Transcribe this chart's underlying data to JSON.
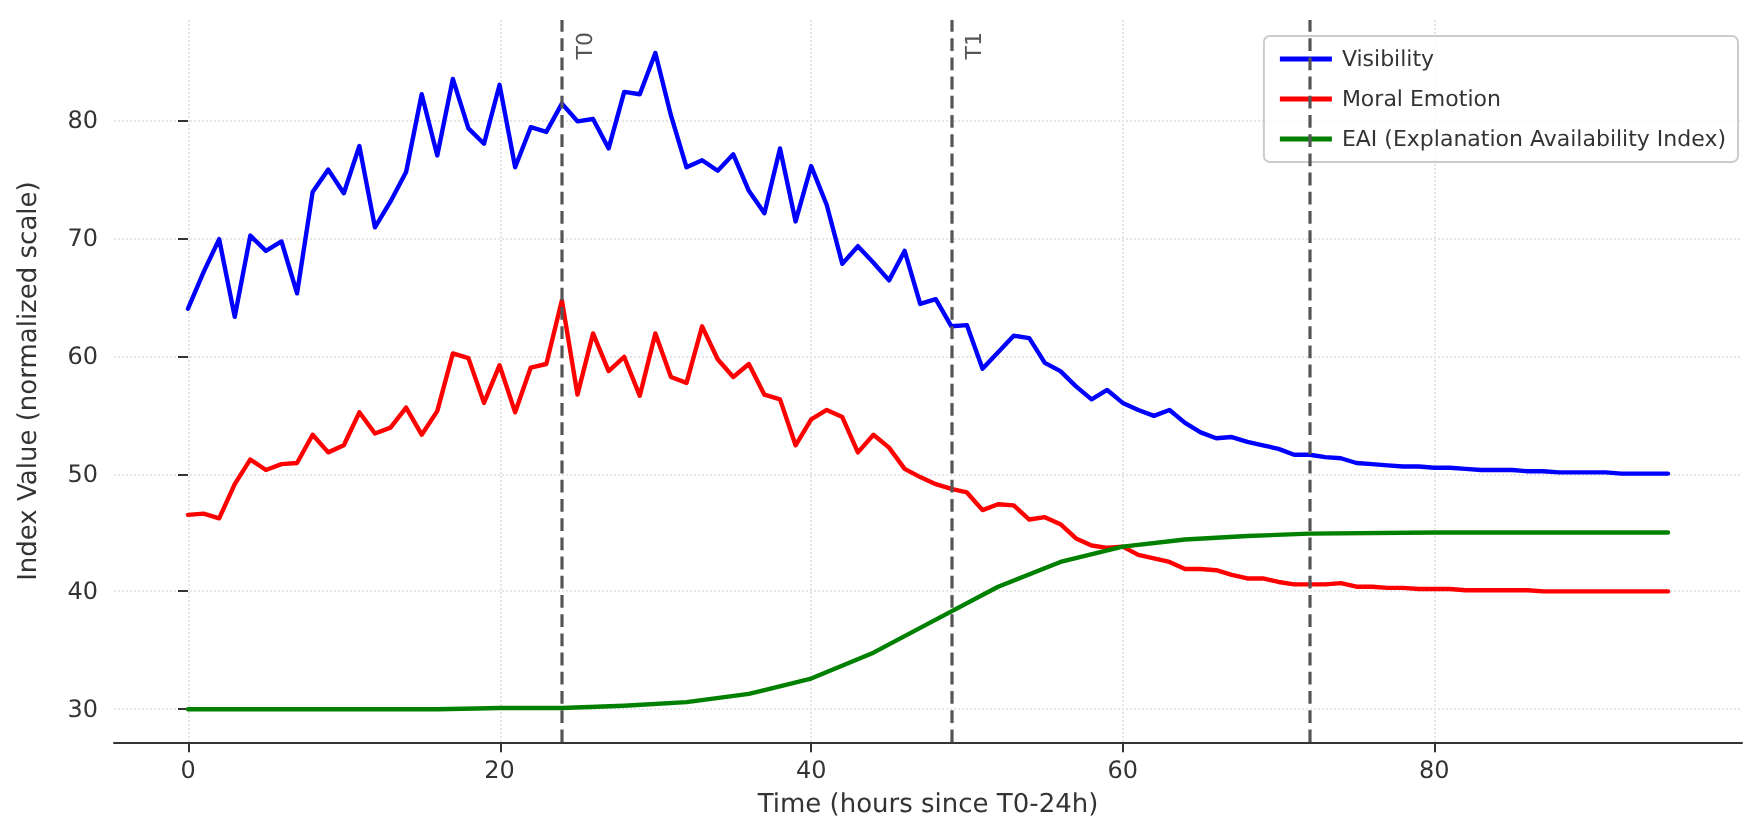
{
  "chart_data": {
    "type": "line",
    "xlabel": "Time (hours since T0-24h)",
    "ylabel": "Index Value (normalized scale)",
    "x": [
      0,
      1,
      2,
      3,
      4,
      5,
      6,
      7,
      8,
      9,
      10,
      11,
      12,
      13,
      14,
      15,
      16,
      17,
      18,
      19,
      20,
      21,
      22,
      23,
      24,
      25,
      26,
      27,
      28,
      29,
      30,
      31,
      32,
      33,
      34,
      35,
      36,
      37,
      38,
      39,
      40,
      41,
      42,
      43,
      44,
      45,
      46,
      47,
      48,
      49,
      50,
      51,
      52,
      53,
      54,
      55,
      56,
      57,
      58,
      59,
      60,
      61,
      62,
      63,
      64,
      65,
      66,
      67,
      68,
      69,
      70,
      71,
      72,
      73,
      74,
      75,
      76,
      77,
      78,
      79,
      80,
      81,
      82,
      83,
      84,
      85,
      86,
      87,
      88,
      89,
      90,
      91,
      92,
      93,
      94,
      95
    ],
    "series": [
      {
        "name": "Visibility",
        "color": "#0000ff",
        "values": [
          64.0,
          67.1,
          69.9,
          63.3,
          70.2,
          68.9,
          69.7,
          65.3,
          73.9,
          75.8,
          73.8,
          77.8,
          70.9,
          73.1,
          75.6,
          82.2,
          77.0,
          83.5,
          79.3,
          78.0,
          83.0,
          76.0,
          79.4,
          79.0,
          81.4,
          79.9,
          80.1,
          77.6,
          82.4,
          82.2,
          85.7,
          80.4,
          76.0,
          76.6,
          75.7,
          77.1,
          74.0,
          72.1,
          77.6,
          71.4,
          76.1,
          72.8,
          67.8,
          69.3,
          67.9,
          66.4,
          68.9,
          64.4,
          64.8,
          62.5,
          62.6,
          58.9,
          60.3,
          61.7,
          61.5,
          59.4,
          58.7,
          57.4,
          56.3,
          57.1,
          56.0,
          55.4,
          54.9,
          55.4,
          54.3,
          53.5,
          53.0,
          53.1,
          52.7,
          52.4,
          52.1,
          51.6,
          51.6,
          51.4,
          51.3,
          50.9,
          50.8,
          50.7,
          50.6,
          50.6,
          50.5,
          50.5,
          50.4,
          50.3,
          50.3,
          50.3,
          50.2,
          50.2,
          50.1,
          50.1,
          50.1,
          50.1,
          50.0,
          50.0,
          50.0,
          50.0
        ]
      },
      {
        "name": "Moral Emotion",
        "color": "#ff0000",
        "values": [
          46.5,
          46.6,
          46.2,
          49.1,
          51.2,
          50.3,
          50.8,
          50.9,
          53.3,
          51.8,
          52.4,
          55.2,
          53.4,
          53.9,
          55.6,
          53.3,
          55.3,
          60.2,
          59.8,
          56.0,
          59.2,
          55.2,
          59.0,
          59.3,
          64.7,
          56.7,
          61.9,
          58.7,
          59.9,
          56.6,
          61.9,
          58.2,
          57.7,
          62.5,
          59.7,
          58.2,
          59.3,
          56.7,
          56.3,
          52.4,
          54.6,
          55.4,
          54.8,
          51.8,
          53.3,
          52.2,
          50.4,
          49.7,
          49.1,
          48.7,
          48.4,
          46.9,
          47.4,
          47.3,
          46.1,
          46.3,
          45.7,
          44.5,
          43.9,
          43.7,
          43.8,
          43.1,
          42.8,
          42.5,
          41.9,
          41.9,
          41.8,
          41.4,
          41.1,
          41.1,
          40.8,
          40.6,
          40.6,
          40.6,
          40.7,
          40.4,
          40.4,
          40.3,
          40.3,
          40.2,
          40.2,
          40.2,
          40.1,
          40.1,
          40.1,
          40.1,
          40.1,
          40.0,
          40.0,
          40.0,
          40.0,
          40.0,
          40.0,
          40.0,
          40.0,
          40.0
        ]
      },
      {
        "name": "EAI (Explanation Availability Index)",
        "color": "#008000",
        "x": [
          0,
          8,
          16,
          20,
          24,
          28,
          32,
          36,
          40,
          44,
          48,
          52,
          56,
          60,
          64,
          68,
          72,
          80,
          88,
          95
        ],
        "values": [
          30.0,
          30.0,
          30.0,
          30.1,
          30.1,
          30.3,
          30.6,
          31.3,
          32.6,
          34.8,
          37.6,
          40.4,
          42.5,
          43.8,
          44.4,
          44.7,
          44.9,
          45.0,
          45.0,
          45.0
        ]
      }
    ],
    "ref_lines": [
      {
        "axis": "x",
        "value": 24,
        "label": "T0",
        "color": "#555555",
        "line_style": "dashed"
      },
      {
        "axis": "x",
        "value": 49,
        "label": "T1",
        "color": "#555555",
        "line_style": "dashed"
      },
      {
        "axis": "x",
        "value": 72,
        "color": "#555555",
        "line_style": "dashed"
      }
    ],
    "xlim": [
      -4.75,
      99.75
    ],
    "ylim": [
      27.2,
      88.5
    ],
    "xticks": [
      0,
      20,
      40,
      60,
      80
    ],
    "yticks": [
      30,
      40,
      50,
      60,
      70,
      80
    ],
    "grid": true,
    "legend": "top right"
  }
}
